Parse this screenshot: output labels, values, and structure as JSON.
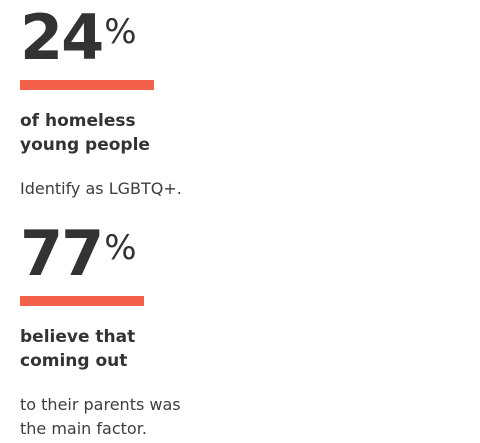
{
  "colors": {
    "accent": "#f4614a",
    "text": "#333333"
  },
  "stats": [
    {
      "number": "24",
      "unit": "%",
      "headline_line1": "of homeless",
      "headline_line2": "young people",
      "body_line1": "Identify as LGBTQ+."
    },
    {
      "number": "77",
      "unit": "%",
      "headline_line1": "believe that",
      "headline_line2": "coming out",
      "body_line1": "to their parents was",
      "body_line2": "the main factor."
    }
  ]
}
